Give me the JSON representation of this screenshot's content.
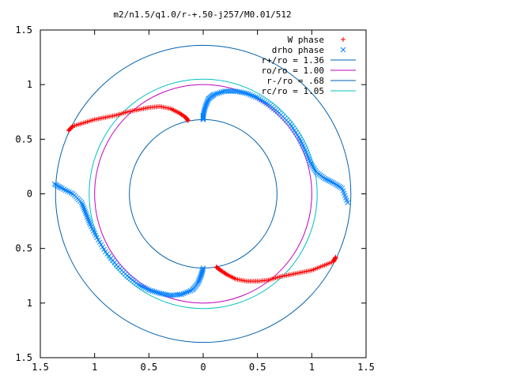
{
  "chart_data": {
    "type": "scatter",
    "title": "m2/n1.5/q1.0/r-+.50-j257/M0.01/512",
    "xlabel": "",
    "ylabel": "",
    "xlim": [
      -1.5,
      1.5
    ],
    "ylim": [
      -1.5,
      1.5
    ],
    "x_ticks": [
      "1.5",
      "1",
      "0.5",
      "0",
      "0.5",
      "1",
      "1.5"
    ],
    "y_ticks": [
      "1.5",
      "1",
      "0.5",
      "0",
      "0.5",
      "1",
      "1.5"
    ],
    "x_tick_values": [
      -1.5,
      -1,
      -0.5,
      0,
      0.5,
      1,
      1.5
    ],
    "y_tick_values": [
      1.5,
      1,
      0.5,
      0,
      -0.5,
      -1,
      -1.5
    ],
    "grid": false,
    "legend_position": "top-right",
    "series": [
      {
        "name": "W phase",
        "marker": "+",
        "color": "#ff0000",
        "curves": [
          [
            [
              -1.24,
              0.58
            ],
            [
              -1.2,
              0.62
            ],
            [
              -1.1,
              0.65
            ],
            [
              -1.0,
              0.68
            ],
            [
              -0.9,
              0.7
            ],
            [
              -0.8,
              0.72
            ],
            [
              -0.7,
              0.75
            ],
            [
              -0.6,
              0.77
            ],
            [
              -0.5,
              0.79
            ],
            [
              -0.4,
              0.8
            ],
            [
              -0.3,
              0.78
            ],
            [
              -0.22,
              0.74
            ],
            [
              -0.16,
              0.7
            ],
            [
              -0.14,
              0.67
            ]
          ],
          [
            [
              0.12,
              -0.67
            ],
            [
              0.16,
              -0.7
            ],
            [
              0.22,
              -0.74
            ],
            [
              0.3,
              -0.78
            ],
            [
              0.4,
              -0.8
            ],
            [
              0.5,
              -0.8
            ],
            [
              0.6,
              -0.79
            ],
            [
              0.7,
              -0.76
            ],
            [
              0.8,
              -0.74
            ],
            [
              0.9,
              -0.72
            ],
            [
              1.0,
              -0.7
            ],
            [
              1.1,
              -0.66
            ],
            [
              1.2,
              -0.62
            ],
            [
              1.22,
              -0.58
            ]
          ]
        ]
      },
      {
        "name": "drho phase",
        "marker": "x",
        "color": "#0080ff",
        "curves": [
          [
            [
              0.0,
              0.68
            ],
            [
              0.0,
              0.72
            ],
            [
              0.02,
              0.8
            ],
            [
              0.05,
              0.87
            ],
            [
              0.1,
              0.91
            ],
            [
              0.2,
              0.94
            ],
            [
              0.3,
              0.94
            ],
            [
              0.4,
              0.92
            ],
            [
              0.5,
              0.88
            ],
            [
              0.6,
              0.82
            ],
            [
              0.7,
              0.74
            ],
            [
              0.8,
              0.64
            ],
            [
              0.88,
              0.52
            ],
            [
              0.94,
              0.4
            ],
            [
              0.99,
              0.28
            ],
            [
              1.04,
              0.2
            ],
            [
              1.12,
              0.14
            ],
            [
              1.2,
              0.1
            ],
            [
              1.28,
              0.05
            ],
            [
              1.33,
              -0.08
            ]
          ],
          [
            [
              -1.37,
              0.09
            ],
            [
              -1.3,
              0.05
            ],
            [
              -1.2,
              0.0
            ],
            [
              -1.12,
              -0.08
            ],
            [
              -1.08,
              -0.18
            ],
            [
              -1.04,
              -0.28
            ],
            [
              -0.98,
              -0.4
            ],
            [
              -0.9,
              -0.53
            ],
            [
              -0.8,
              -0.65
            ],
            [
              -0.7,
              -0.75
            ],
            [
              -0.6,
              -0.83
            ],
            [
              -0.5,
              -0.88
            ],
            [
              -0.4,
              -0.91
            ],
            [
              -0.3,
              -0.93
            ],
            [
              -0.2,
              -0.92
            ],
            [
              -0.1,
              -0.88
            ],
            [
              -0.05,
              -0.82
            ],
            [
              -0.02,
              -0.75
            ],
            [
              0.0,
              -0.68
            ]
          ]
        ]
      },
      {
        "name": "r+/ro = 1.36",
        "kind": "circle",
        "radius": 1.36,
        "color": "#0060ad"
      },
      {
        "name": "ro/ro = 1.00",
        "kind": "circle",
        "radius": 1.0,
        "color": "#c000c0"
      },
      {
        "name": "r-/ro = .68",
        "kind": "circle",
        "radius": 0.68,
        "color": "#0060ad"
      },
      {
        "name": "rc/ro = 1.05",
        "kind": "circle",
        "radius": 1.05,
        "color": "#00c0c0"
      }
    ]
  }
}
